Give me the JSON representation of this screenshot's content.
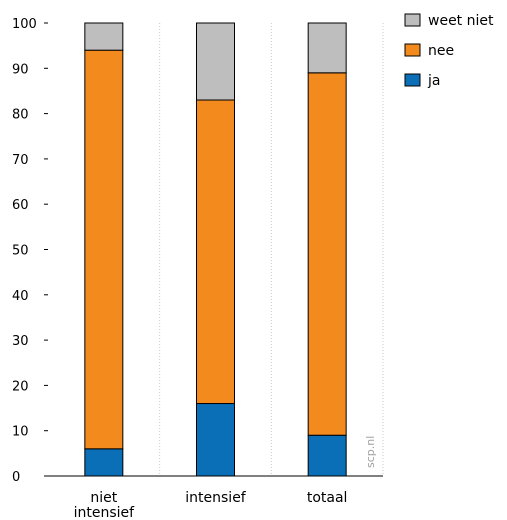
{
  "chart_data": {
    "type": "bar",
    "stacked": true,
    "categories": [
      "niet intensief",
      "intensief",
      "totaal"
    ],
    "series": [
      {
        "name": "ja",
        "color": "#0b6fb8",
        "values": [
          6,
          16,
          9
        ]
      },
      {
        "name": "nee",
        "color": "#f28a1e",
        "values": [
          88,
          67,
          80
        ]
      },
      {
        "name": "weet niet",
        "color": "#bebebe",
        "values": [
          6,
          17,
          11
        ]
      }
    ],
    "ylim": [
      0,
      100
    ],
    "yticks": [
      0,
      10,
      20,
      30,
      40,
      50,
      60,
      70,
      80,
      90,
      100
    ],
    "grid": "vertical dotted",
    "legend_position": "top-right",
    "legend_order": [
      "weet niet",
      "nee",
      "ja"
    ],
    "watermark": "scp.nl"
  }
}
